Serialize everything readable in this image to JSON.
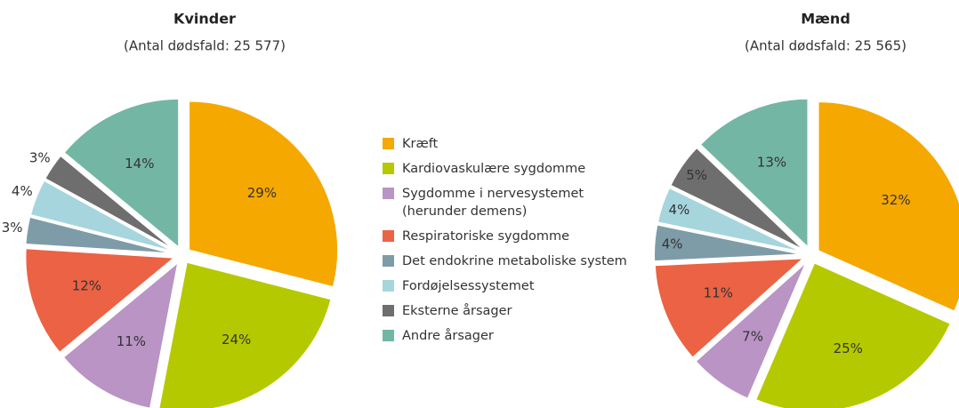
{
  "chart_data": [
    {
      "type": "pie",
      "title": "Kvinder",
      "subtitle": "(Antal dødsfald: 25 577)",
      "categories": [
        "Kræft",
        "Kardiovaskulære sygdomme",
        "Sygdomme i nervesystemet\n(herunder demens)",
        "Respiratoriske sygdomme",
        "Det endokrine metaboliske system",
        "Fordøjelsessystemet",
        "Eksterne årsager",
        "Andre årsager"
      ],
      "values": [
        29,
        24,
        11,
        12,
        3,
        4,
        3,
        14
      ],
      "value_labels": [
        "29%",
        "24%",
        "11%",
        "12%",
        "3%",
        "4%",
        "3%",
        "14%"
      ],
      "colors": [
        "#f5a800",
        "#b5c900",
        "#b994c4",
        "#eb6244",
        "#7e9ca8",
        "#a6d5de",
        "#6e6e6e",
        "#74b6a4"
      ]
    },
    {
      "type": "pie",
      "title": "Mænd",
      "subtitle": "(Antal dødsfald: 25 565)",
      "categories": [
        "Kræft",
        "Kardiovaskulære sygdomme",
        "Sygdomme i nervesystemet\n(herunder demens)",
        "Respiratoriske sygdomme",
        "Det endokrine metaboliske system",
        "Fordøjelsessystemet",
        "Eksterne årsager",
        "Andre årsager"
      ],
      "values": [
        32,
        25,
        7,
        11,
        4,
        4,
        5,
        13
      ],
      "value_labels": [
        "32%",
        "25%",
        "7%",
        "11%",
        "4%",
        "4%",
        "5%",
        "13%"
      ],
      "colors": [
        "#f5a800",
        "#b5c900",
        "#b994c4",
        "#eb6244",
        "#7e9ca8",
        "#a6d5de",
        "#6e6e6e",
        "#74b6a4"
      ]
    }
  ]
}
